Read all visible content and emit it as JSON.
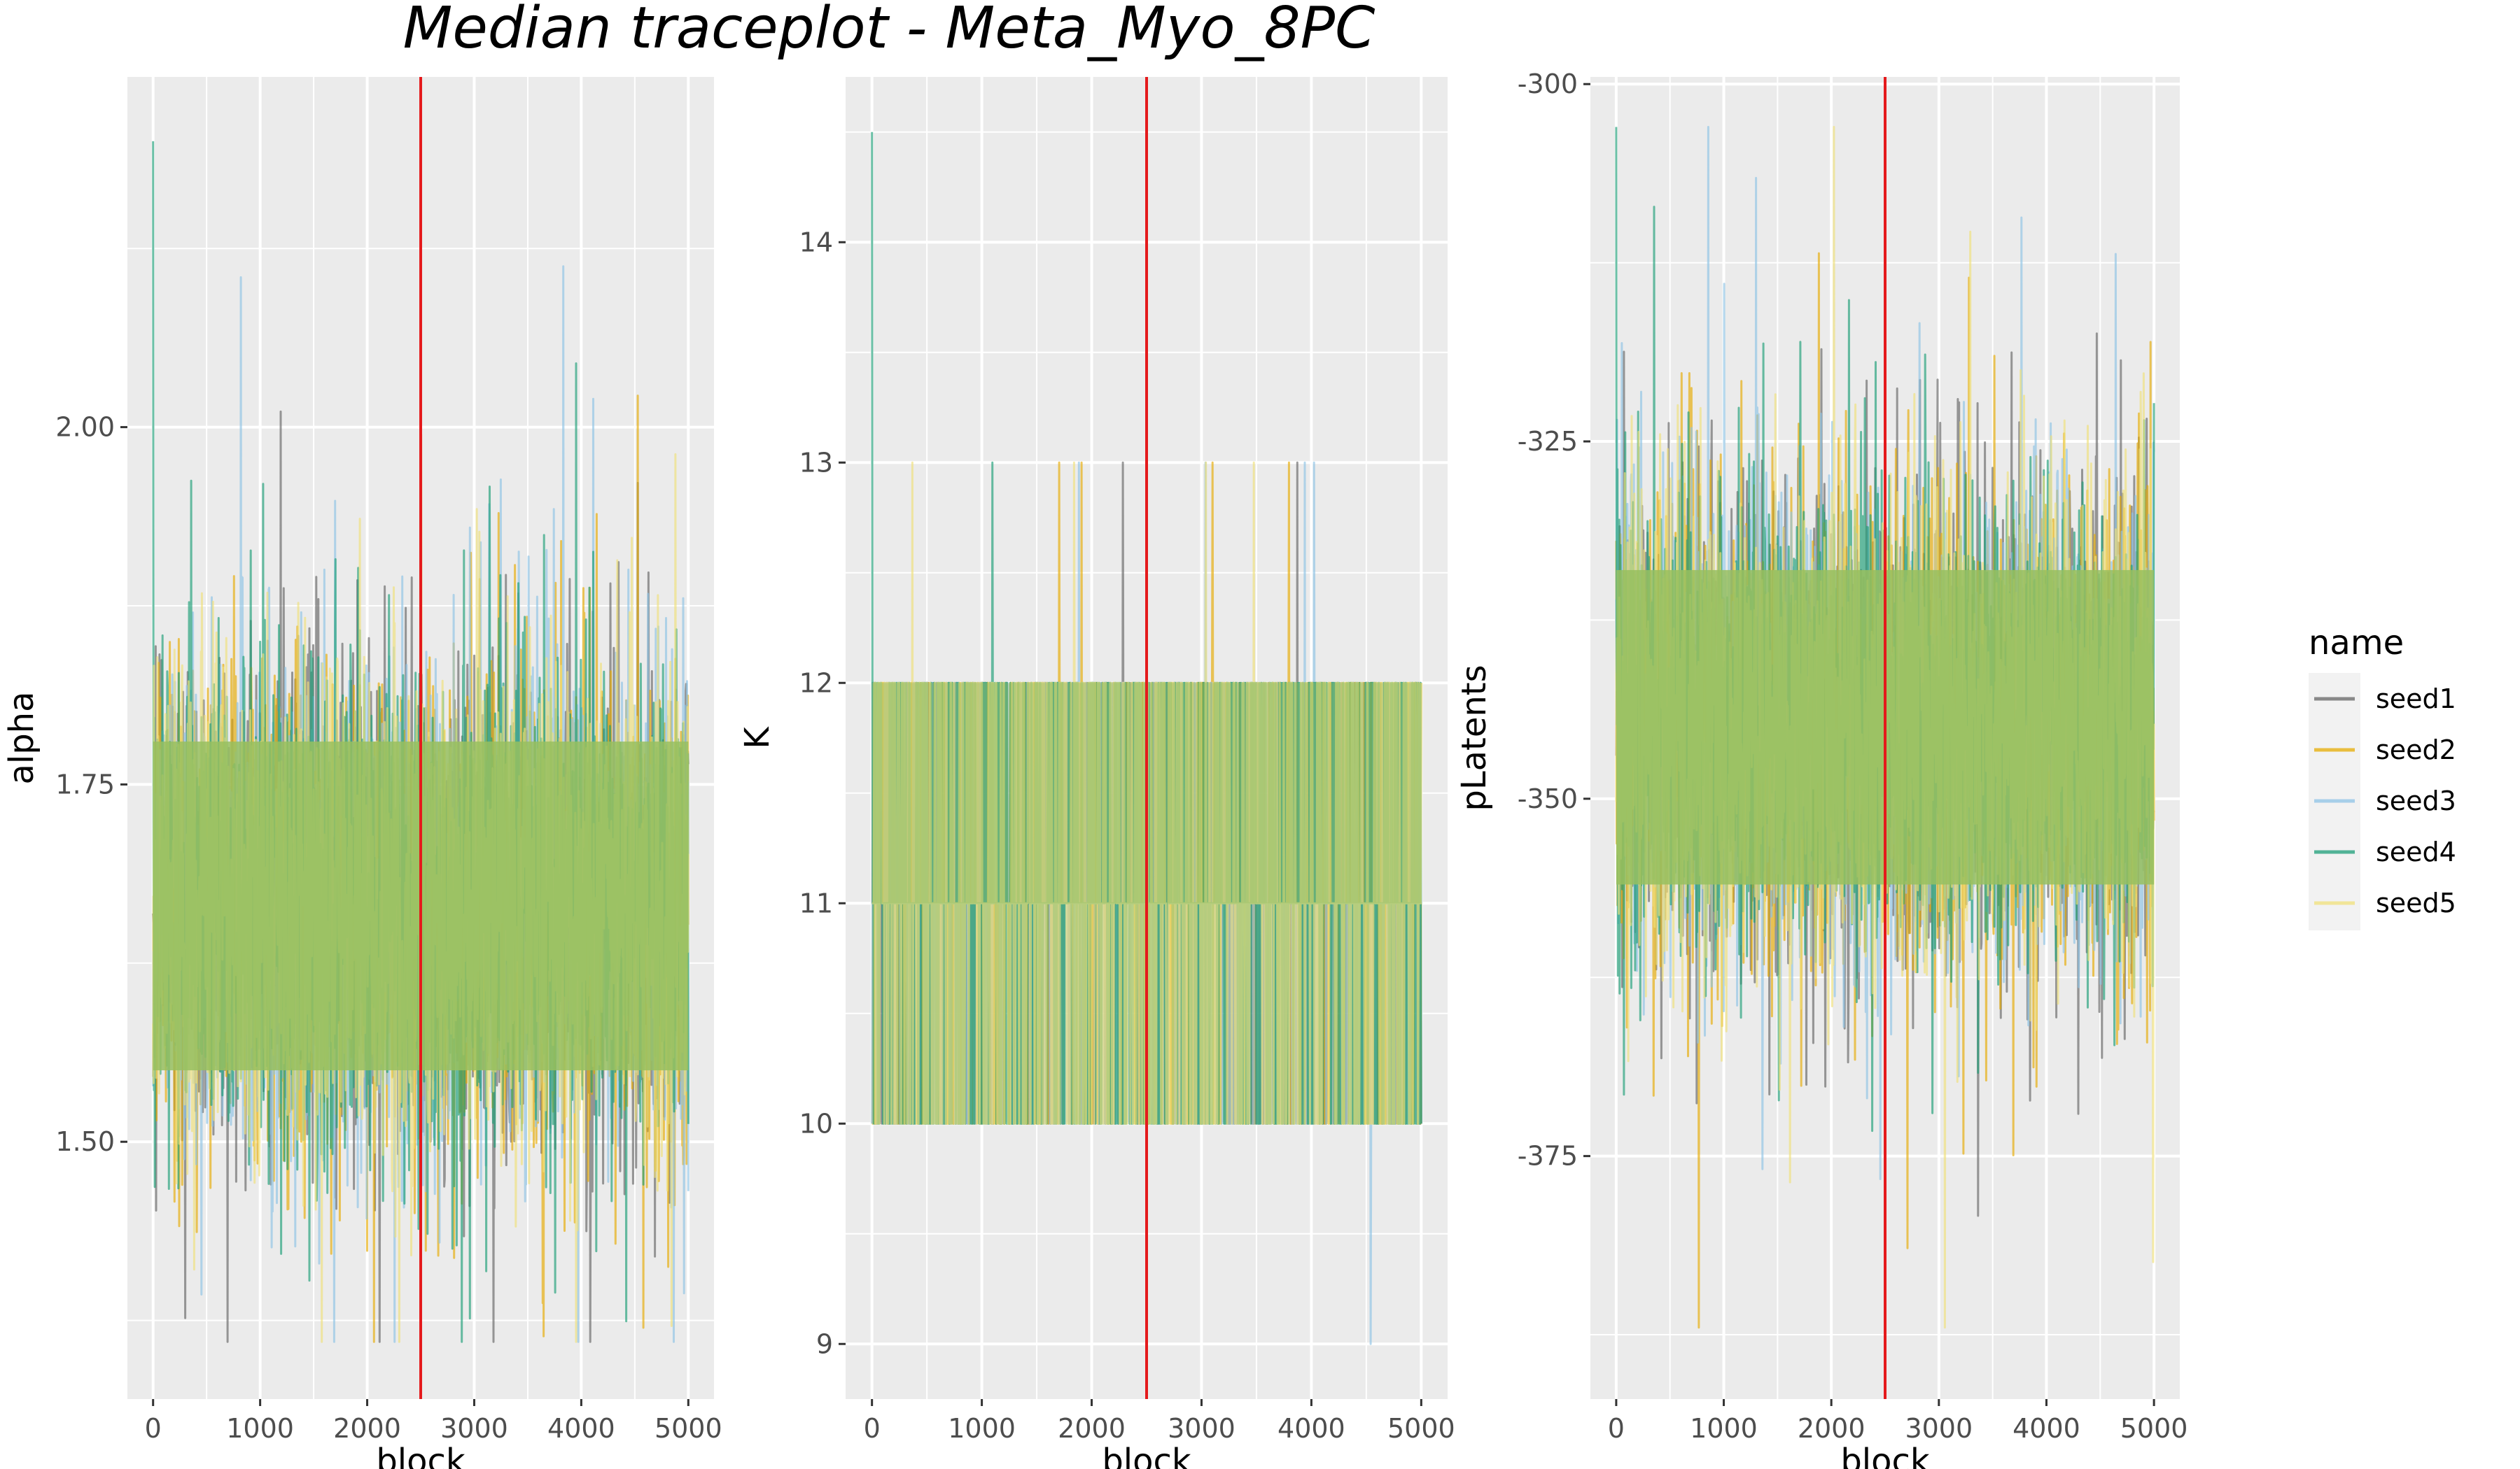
{
  "title": "Median traceplot - Meta_Myo_8PC",
  "legend": {
    "title": "name",
    "position": "right",
    "items": [
      {
        "label": "seed1",
        "color": "#666666"
      },
      {
        "label": "seed2",
        "color": "#E6AB02"
      },
      {
        "label": "seed3",
        "color": "#8DC3E5"
      },
      {
        "label": "seed4",
        "color": "#1B9E77"
      },
      {
        "label": "seed5",
        "color": "#F0E07A"
      }
    ]
  },
  "chart_data": [
    {
      "type": "line",
      "xlabel": "block",
      "ylabel": "alpha",
      "xlim": [
        -240,
        5240
      ],
      "ylim": [
        1.32,
        2.245
      ],
      "xticks": [
        0,
        1000,
        2000,
        3000,
        4000,
        5000
      ],
      "yticks": [
        1.5,
        1.75,
        2.0
      ],
      "ytick_labels": [
        "1.50",
        "1.75",
        "2.00"
      ],
      "burnin_line_x": 2500,
      "burnin_line_color": "#E41A1C",
      "grid": true,
      "band": {
        "core_low": 1.55,
        "core_high": 1.78,
        "min": 1.36,
        "max": 2.2
      },
      "series": [
        {
          "name": "seed1",
          "color": "#666666",
          "n_points": 5000
        },
        {
          "name": "seed2",
          "color": "#E6AB02",
          "n_points": 5000
        },
        {
          "name": "seed3",
          "color": "#8DC3E5",
          "n_points": 5000
        },
        {
          "name": "seed4",
          "color": "#1B9E77",
          "n_points": 5000
        },
        {
          "name": "seed5",
          "color": "#F0E07A",
          "n_points": 5000
        }
      ]
    },
    {
      "type": "line",
      "xlabel": "block",
      "ylabel": "K",
      "xlim": [
        -240,
        5240
      ],
      "ylim": [
        8.75,
        14.75
      ],
      "xticks": [
        0,
        1000,
        2000,
        3000,
        4000,
        5000
      ],
      "yticks": [
        9,
        10,
        11,
        12,
        13,
        14
      ],
      "ytick_labels": [
        "9",
        "10",
        "11",
        "12",
        "13",
        "14"
      ],
      "burnin_line_x": 2500,
      "burnin_line_color": "#E41A1C",
      "grid": true,
      "levels": [
        10,
        11,
        12
      ],
      "occasional_levels": [
        13
      ],
      "min": 9,
      "max": 14.5,
      "series": [
        {
          "name": "seed1",
          "color": "#666666",
          "n_points": 5000
        },
        {
          "name": "seed2",
          "color": "#E6AB02",
          "n_points": 5000
        },
        {
          "name": "seed3",
          "color": "#8DC3E5",
          "n_points": 5000
        },
        {
          "name": "seed4",
          "color": "#1B9E77",
          "n_points": 5000
        },
        {
          "name": "seed5",
          "color": "#F0E07A",
          "n_points": 5000
        }
      ]
    },
    {
      "type": "line",
      "xlabel": "block",
      "ylabel": "pLatents",
      "xlim": [
        -240,
        5240
      ],
      "ylim": [
        -392,
        -299.5
      ],
      "xticks": [
        0,
        1000,
        2000,
        3000,
        4000,
        5000
      ],
      "yticks": [
        -375,
        -350,
        -325,
        -300
      ],
      "ytick_labels": [
        "-375",
        "-350",
        "-325",
        "-300"
      ],
      "burnin_line_x": 2500,
      "burnin_line_color": "#E41A1C",
      "grid": true,
      "band": {
        "core_low": -356,
        "core_high": -334,
        "min": -387,
        "max": -303
      },
      "series": [
        {
          "name": "seed1",
          "color": "#666666",
          "n_points": 5000
        },
        {
          "name": "seed2",
          "color": "#E6AB02",
          "n_points": 5000
        },
        {
          "name": "seed3",
          "color": "#8DC3E5",
          "n_points": 5000
        },
        {
          "name": "seed4",
          "color": "#1B9E77",
          "n_points": 5000
        },
        {
          "name": "seed5",
          "color": "#F0E07A",
          "n_points": 5000
        }
      ]
    }
  ]
}
